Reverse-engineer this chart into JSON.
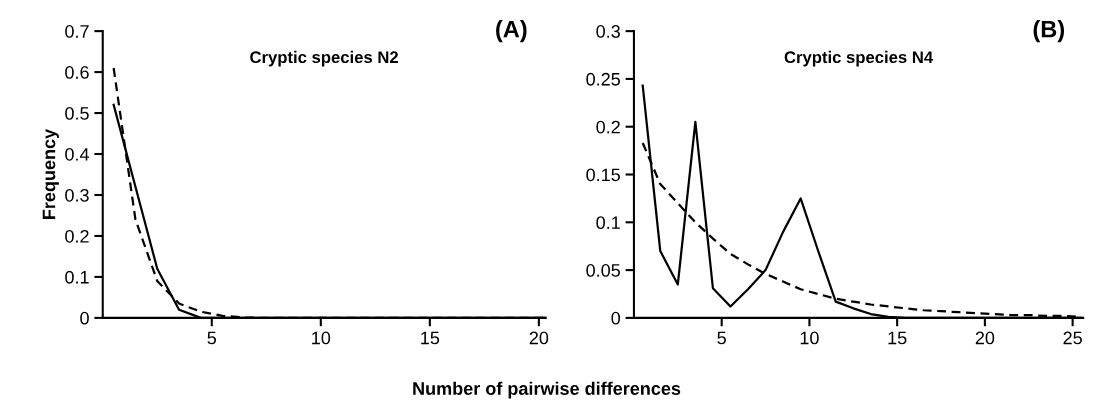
{
  "chart_data": [
    {
      "type": "line",
      "title": "Cryptic species N2",
      "ylabel": "Frequency",
      "xlabel": "Number of pairwise differences",
      "annotations": [
        "(A)"
      ],
      "xlim": [
        0,
        20.3
      ],
      "xticks": [
        5,
        10,
        15,
        20
      ],
      "ylim": [
        0,
        0.7
      ],
      "yticks": [
        0,
        0.1,
        0.2,
        0.3,
        0.4,
        0.5,
        0.6,
        0.7
      ],
      "grid": false,
      "legend": false,
      "series": [
        {
          "color": "#000000",
          "line_style": "solid",
          "x": [
            0.5,
            1.5,
            2.5,
            3.5,
            4.5,
            5.5,
            6.5,
            7.5,
            8.5,
            9.5,
            10.5,
            11.5,
            12.5,
            13.5,
            14.5,
            15.5,
            16.5,
            17.5,
            18.5,
            19.5,
            20.3
          ],
          "values": [
            0.52,
            0.32,
            0.12,
            0.02,
            0,
            0,
            0,
            0,
            0,
            0,
            0,
            0,
            0,
            0,
            0,
            0,
            0,
            0,
            0,
            0,
            0
          ]
        },
        {
          "color": "#000000",
          "line_style": "dashed",
          "x": [
            0.5,
            1.5,
            2.5,
            3.5,
            4.5,
            5.5,
            6.5,
            7.5,
            8.5,
            9.5,
            10.5,
            11.5,
            12.5,
            13.5,
            14.5,
            15.5,
            16.5,
            17.5,
            18.5,
            19.5,
            20.3
          ],
          "values": [
            0.61,
            0.24,
            0.09,
            0.035,
            0.015,
            0.005,
            0.001,
            0,
            0,
            0,
            0,
            0,
            0,
            0,
            0,
            0,
            0,
            0,
            0,
            0,
            0
          ]
        }
      ]
    },
    {
      "type": "line",
      "title": "Cryptic species N4",
      "annotations": [
        "(B)"
      ],
      "xlim": [
        0,
        25.6
      ],
      "xticks": [
        5,
        10,
        15,
        20,
        25
      ],
      "ylim": [
        0,
        0.3
      ],
      "yticks": [
        0,
        0.05,
        0.1,
        0.15,
        0.2,
        0.25,
        0.3
      ],
      "grid": false,
      "legend": false,
      "series": [
        {
          "color": "#000000",
          "line_style": "solid",
          "x": [
            0.5,
            1.5,
            2.5,
            3.5,
            4.5,
            5.5,
            6.5,
            7.5,
            8.5,
            9.5,
            10.5,
            11.5,
            12.5,
            13.5,
            14.5,
            15.5,
            16.5,
            17.5,
            18.5,
            19.5,
            20.5,
            21.5,
            22.5,
            23.5,
            24.5,
            25.5
          ],
          "values": [
            0.243,
            0.07,
            0.035,
            0.205,
            0.031,
            0.012,
            0.03,
            0.05,
            0.09,
            0.125,
            0.07,
            0.017,
            0.01,
            0.004,
            0.001,
            0,
            0,
            0,
            0,
            0,
            0,
            0,
            0,
            0,
            0,
            0
          ]
        },
        {
          "color": "#000000",
          "line_style": "dashed",
          "x": [
            0.5,
            1.5,
            2.5,
            3.5,
            4.5,
            5.5,
            6.5,
            7.5,
            8.5,
            9.5,
            10.5,
            11.5,
            12.5,
            13.5,
            14.5,
            15.5,
            16.5,
            17.5,
            18.5,
            19.5,
            20.5,
            21.5,
            22.5,
            23.5,
            24.5,
            25.5
          ],
          "values": [
            0.183,
            0.14,
            0.12,
            0.1,
            0.083,
            0.067,
            0.056,
            0.046,
            0.038,
            0.03,
            0.025,
            0.02,
            0.017,
            0.014,
            0.012,
            0.01,
            0.008,
            0.007,
            0.006,
            0.005,
            0.004,
            0.003,
            0.003,
            0.002,
            0.002,
            0.001
          ]
        }
      ]
    }
  ]
}
